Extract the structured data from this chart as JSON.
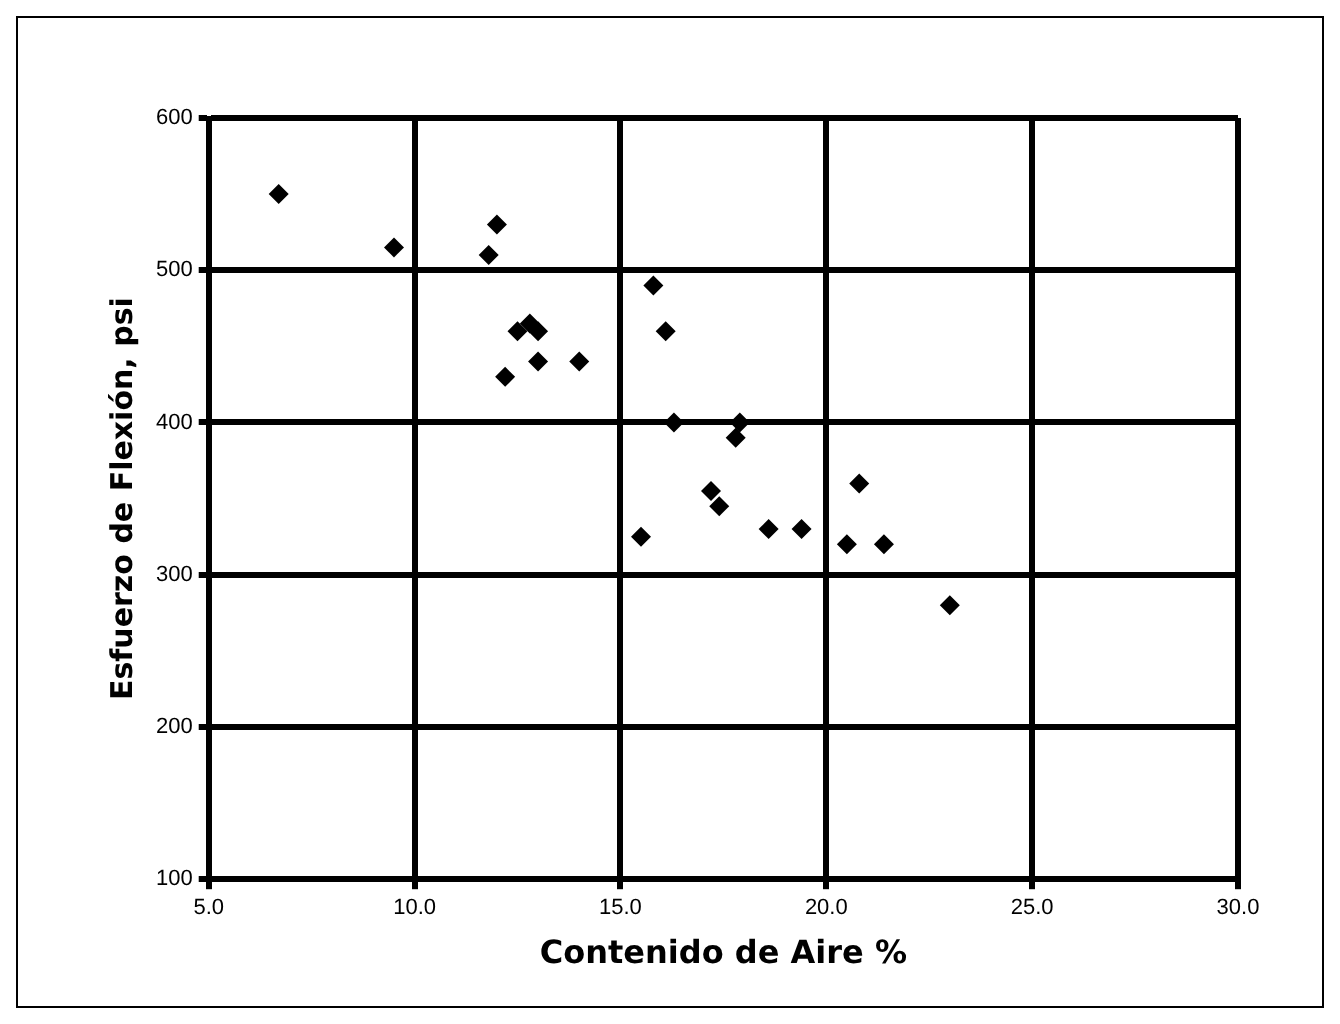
{
  "chart_data": {
    "type": "scatter",
    "xlabel": "Contenido de Aire %",
    "ylabel": "Esfuerzo de Flexión, psi",
    "x": [
      6.7,
      9.5,
      12.0,
      11.8,
      12.5,
      12.8,
      13.0,
      12.2,
      13.0,
      14.0,
      15.8,
      16.1,
      16.3,
      17.9,
      17.8,
      15.5,
      17.2,
      17.4,
      18.6,
      19.4,
      20.5,
      21.4,
      20.8,
      23.0
    ],
    "values": [
      550,
      515,
      530,
      510,
      460,
      465,
      460,
      430,
      440,
      440,
      490,
      460,
      400,
      400,
      390,
      325,
      355,
      345,
      330,
      330,
      320,
      320,
      360,
      280
    ],
    "color": "#000000",
    "marker": "diamond",
    "xlim": [
      5,
      30
    ],
    "xticks": [
      {
        "value": 5,
        "label": "5.0"
      },
      {
        "value": 10,
        "label": "10.0"
      },
      {
        "value": 15,
        "label": "15.0"
      },
      {
        "value": 20,
        "label": "20.0"
      },
      {
        "value": 25,
        "label": "25.0"
      },
      {
        "value": 30,
        "label": "30.0"
      }
    ],
    "ylim": [
      100,
      600
    ],
    "yticks": [
      100,
      200,
      300,
      400,
      500,
      600
    ],
    "grid": true,
    "legend": false
  }
}
